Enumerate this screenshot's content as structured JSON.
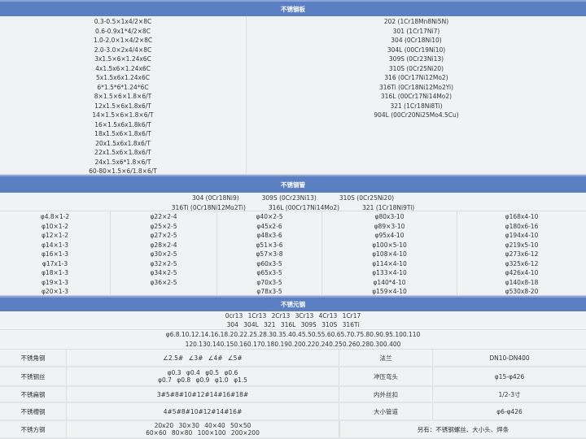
{
  "plate": {
    "title": "不锈钢板",
    "sizes": [
      "0.3-0.5×1x4/2×8C",
      "0.6-0.9x1*4/2×8C",
      "1.0-2.0×1×4/2×8C",
      "2.0-3.0×2x4/4×8C",
      "3x1.5×6×1.24x6C",
      "4x1.5x6×1.24x6C",
      "5x1.5x6x1.24x6C",
      "6*1.5*6*1.24*6C",
      "8×1.5×6×1.8×6/T",
      "12x1.5×6x1.8x6/T",
      "14×1.5×6×1.8×6/T",
      "16×1.5x6x1.8k6/T",
      "18x1.5x6×1.8x6/T",
      "20x1.5x6x1.8x6/T",
      "22x1.5x6×1.8x6/T",
      "24x1.5x6*1.8×6/T",
      "60-80×1.5×6/1.8×6/T"
    ],
    "grades": [
      "202 (1Cr18Mn8Ni5N)",
      "301 (1Cr17Ni7)",
      "304 (0Cr18Ni10)",
      "304L (00Cr19Ni10)",
      "309S (0Cr23Ni13)",
      "310S (0Cr25Ni20)",
      "316 (0Cr17Ni12Mo2)",
      "316Ti (0Cr18Ni12Mo2Yi)",
      "316L (00Cr17Ni14Mo2)",
      "321 (1Cr18Ni8Ti)",
      "904L (00Cr20Ni25Mo4.5Cu)"
    ]
  },
  "tube": {
    "title": "不锈钢管",
    "grades_row1": [
      "304 (0Cr18Ni9)",
      "309S (0Cr23Ni13)",
      "310S (0Cr25Ni20)"
    ],
    "grades_row2": [
      "316Ti (0Cr18Ni12Mo2Ti)",
      "316L (00Cr17Ni14Mo2)",
      "321 (1Cr18Ni9Ti)"
    ],
    "columns": [
      [
        "φ4.8×1-2",
        "φ10×1-2",
        "φ12×1-2",
        "φ14×1-3",
        "φ16×1-3",
        "φ17x1-3",
        "φ18×1-3",
        "φ19×1-3",
        "φ20×1-3"
      ],
      [
        "φ22×2-4",
        "φ25×2-5",
        "φ27×2-5",
        "φ28×2-4",
        "φ30×2-5",
        "φ32×2-5",
        "φ34×2-5",
        "φ36×2-5"
      ],
      [
        "φ40×2-5",
        "φ45x2-6",
        "φ48x3-6",
        "φ51×3-6",
        "φ57×3-8",
        "φ60x3-5",
        "φ65x3-5",
        "φ70x3-5",
        "φ78x3-5"
      ],
      [
        "φ80x3-10",
        "φ89×3-10",
        "φ95x4-10",
        "φ100×5-10",
        "φ108×4-10",
        "φ114×4-10",
        "φ133×4-10",
        "φ140*4-10",
        "φ159×4-10"
      ],
      [
        "φ168x4-10",
        "φ180x6-16",
        "φ194x4-10",
        "φ219x5-10",
        "φ273x6-12",
        "φ325x6-12",
        "φ426x4-10",
        "φ140x8-18",
        "φ530x8-20"
      ]
    ]
  },
  "bar": {
    "title": "不锈元钢",
    "grades1": "0cr13 1Cr13 2Cr13 3Cr13 4Cr13 1Cr17",
    "grades2": "304 304L 321 316L 309S 310S 316Ti",
    "dia1": "φ6.8.10.12.14.16.18.20.22.25.28.30.35.40.45.50.55.60.65.70.75.80.90.95.100.110",
    "dia2": "120.130.140.150.160.170.180.190.200.220.240.250.260.280.300.400"
  },
  "rows": [
    {
      "name": "不锈角钢",
      "spec": [
        "∠2.5# ∠3# ∠4# ∠5#"
      ],
      "name2": "法兰",
      "spec2": "DN10-DN400"
    },
    {
      "name": "不锈钢丝",
      "spec": [
        "φ0.3 φ0.4 φ0.5 φ0.6",
        "φ0.7 φ0.8 φ0.9 φ1.0 φ1.5"
      ],
      "name2": "冲压弯头",
      "spec2": "φ15-φ426"
    },
    {
      "name": "不锈扁钢",
      "spec": [
        "3#5#8#10#12#14#16#18#"
      ],
      "name2": "内外丝扣",
      "spec2": "1/2-3寸"
    },
    {
      "name": "不锈槽钢",
      "spec": [
        "4#5#8#10#12#14#16#"
      ],
      "name2": "大小管道",
      "spec2": "φ6-φ426"
    },
    {
      "name": "不锈方钢",
      "spec": [
        "20x20 30×30 40×40 50×50",
        "60×60 80×80 100×100 200×200"
      ],
      "note": "另有：不锈钢螺丝、大小头、焊条"
    }
  ]
}
